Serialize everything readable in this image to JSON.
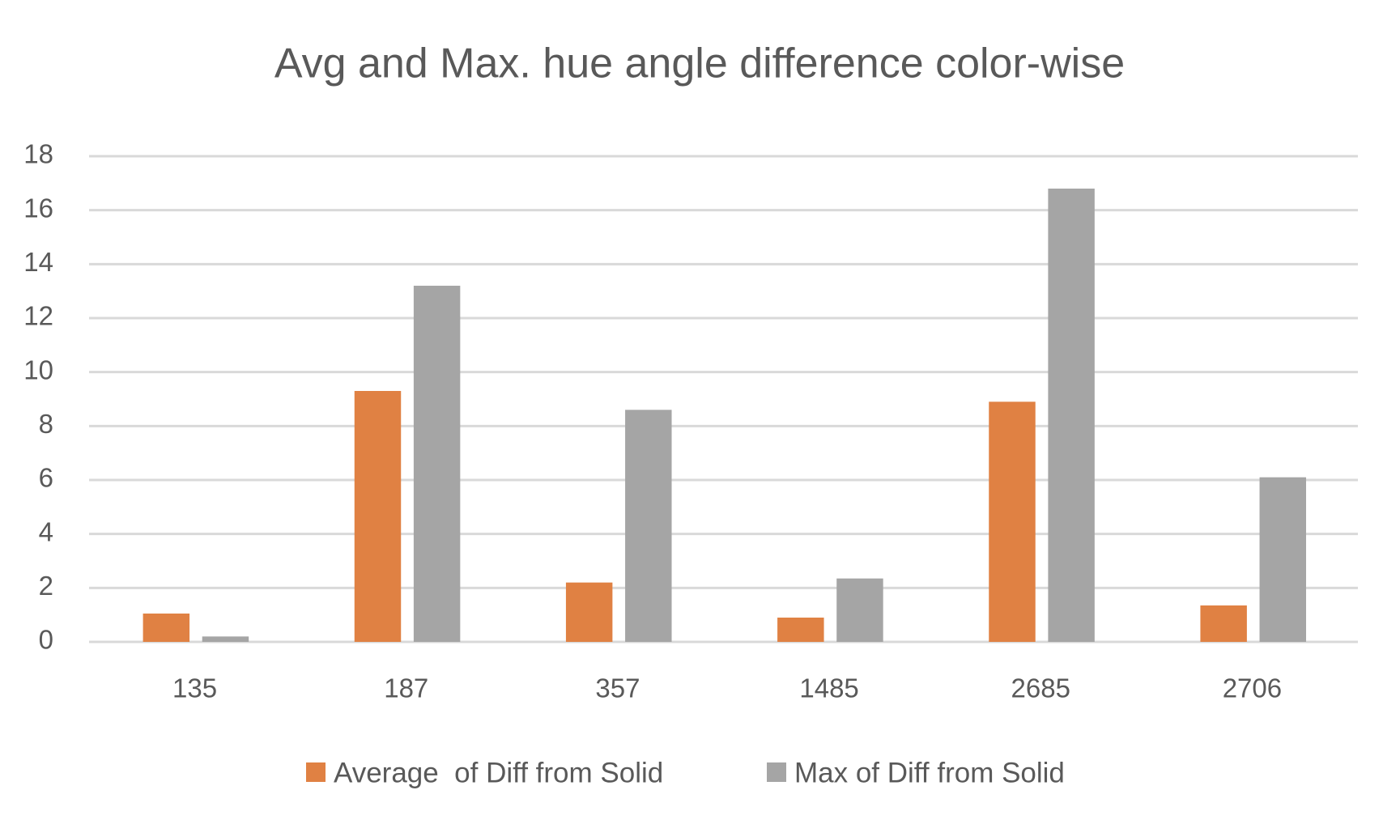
{
  "chart_data": {
    "type": "bar",
    "title": "Avg and Max. hue angle difference color-wise",
    "categories": [
      "135",
      "187",
      "357",
      "1485",
      "2685",
      "2706"
    ],
    "series": [
      {
        "name": "Average  of Diff from Solid",
        "color": "#e08143",
        "values": [
          1.05,
          9.3,
          2.2,
          0.9,
          8.9,
          1.35
        ]
      },
      {
        "name": "Max of Diff from Solid",
        "color": "#a5a5a5",
        "values": [
          0.2,
          13.2,
          8.6,
          2.35,
          16.8,
          6.1
        ]
      }
    ],
    "ylim": [
      0,
      18
    ],
    "yticks": [
      0,
      2,
      4,
      6,
      8,
      10,
      12,
      14,
      16,
      18
    ],
    "grid": true,
    "legend": "bottom"
  }
}
